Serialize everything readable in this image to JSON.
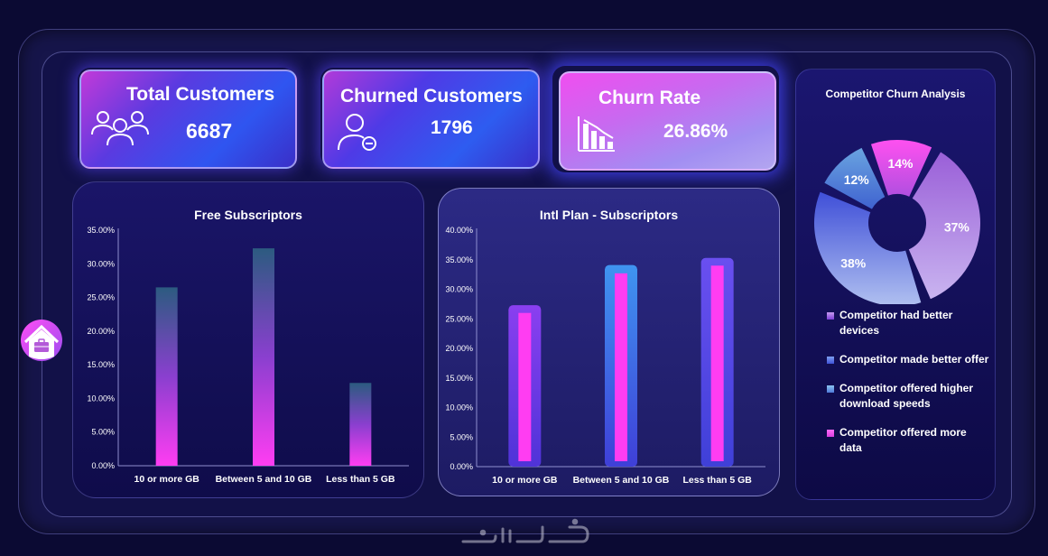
{
  "kpis": {
    "total": {
      "title": "Total Customers",
      "value": "6687",
      "icon": "users-icon"
    },
    "churned": {
      "title": "Churned Customers",
      "value": "1796",
      "icon": "user-minus-icon"
    },
    "rate": {
      "title": "Churn Rate",
      "value": "26.86%",
      "icon": "declining-bar-chart-icon"
    }
  },
  "colors": {
    "magenta": "#ff3df2",
    "purple": "#7a3ff0",
    "blue": "#3f8cf0",
    "teal": "#2f5a7c",
    "background": "#0b0a33"
  },
  "chart_data": [
    {
      "type": "bar",
      "title": "Free Subscriptors",
      "categories": [
        "10 or more GB",
        "Between 5 and 10 GB",
        "Less than 5 GB"
      ],
      "values": [
        26.5,
        32.3,
        12.3
      ],
      "value_unit": "%",
      "ylim": [
        0,
        35
      ],
      "yticks": [
        "0.00%",
        "5.00%",
        "10.00%",
        "15.00%",
        "20.00%",
        "25.00%",
        "30.00%",
        "35.00%"
      ],
      "grid": false
    },
    {
      "type": "bar",
      "title": "Intl Plan - Subscriptors",
      "categories": [
        "10 or more GB",
        "Between 5 and 10 GB",
        "Less than 5 GB"
      ],
      "series": [
        {
          "values": [
            27.3,
            34.1,
            35.3
          ]
        },
        {
          "values": [
            26.0,
            32.7,
            34.0
          ]
        }
      ],
      "value_unit": "%",
      "ylim": [
        0,
        40
      ],
      "yticks": [
        "0.00%",
        "5.00%",
        "10.00%",
        "15.00%",
        "20.00%",
        "25.00%",
        "30.00%",
        "35.00%",
        "40.00%"
      ],
      "grid": false
    },
    {
      "type": "pie",
      "title": "Competitor Churn Analysis",
      "labels": [
        "Competitor had better devices",
        "Competitor made better offer",
        "Competitor offered higher download speeds",
        "Competitor offered more data"
      ],
      "values": [
        37,
        38,
        12,
        14
      ],
      "value_labels": [
        "37%",
        "38%",
        "12%",
        "14%"
      ],
      "colors": [
        "#9a63d8",
        "#4f66e0",
        "#5a9ad8",
        "#e24de8"
      ],
      "legend_position": "bottom"
    }
  ],
  "watermark": "خمسات"
}
